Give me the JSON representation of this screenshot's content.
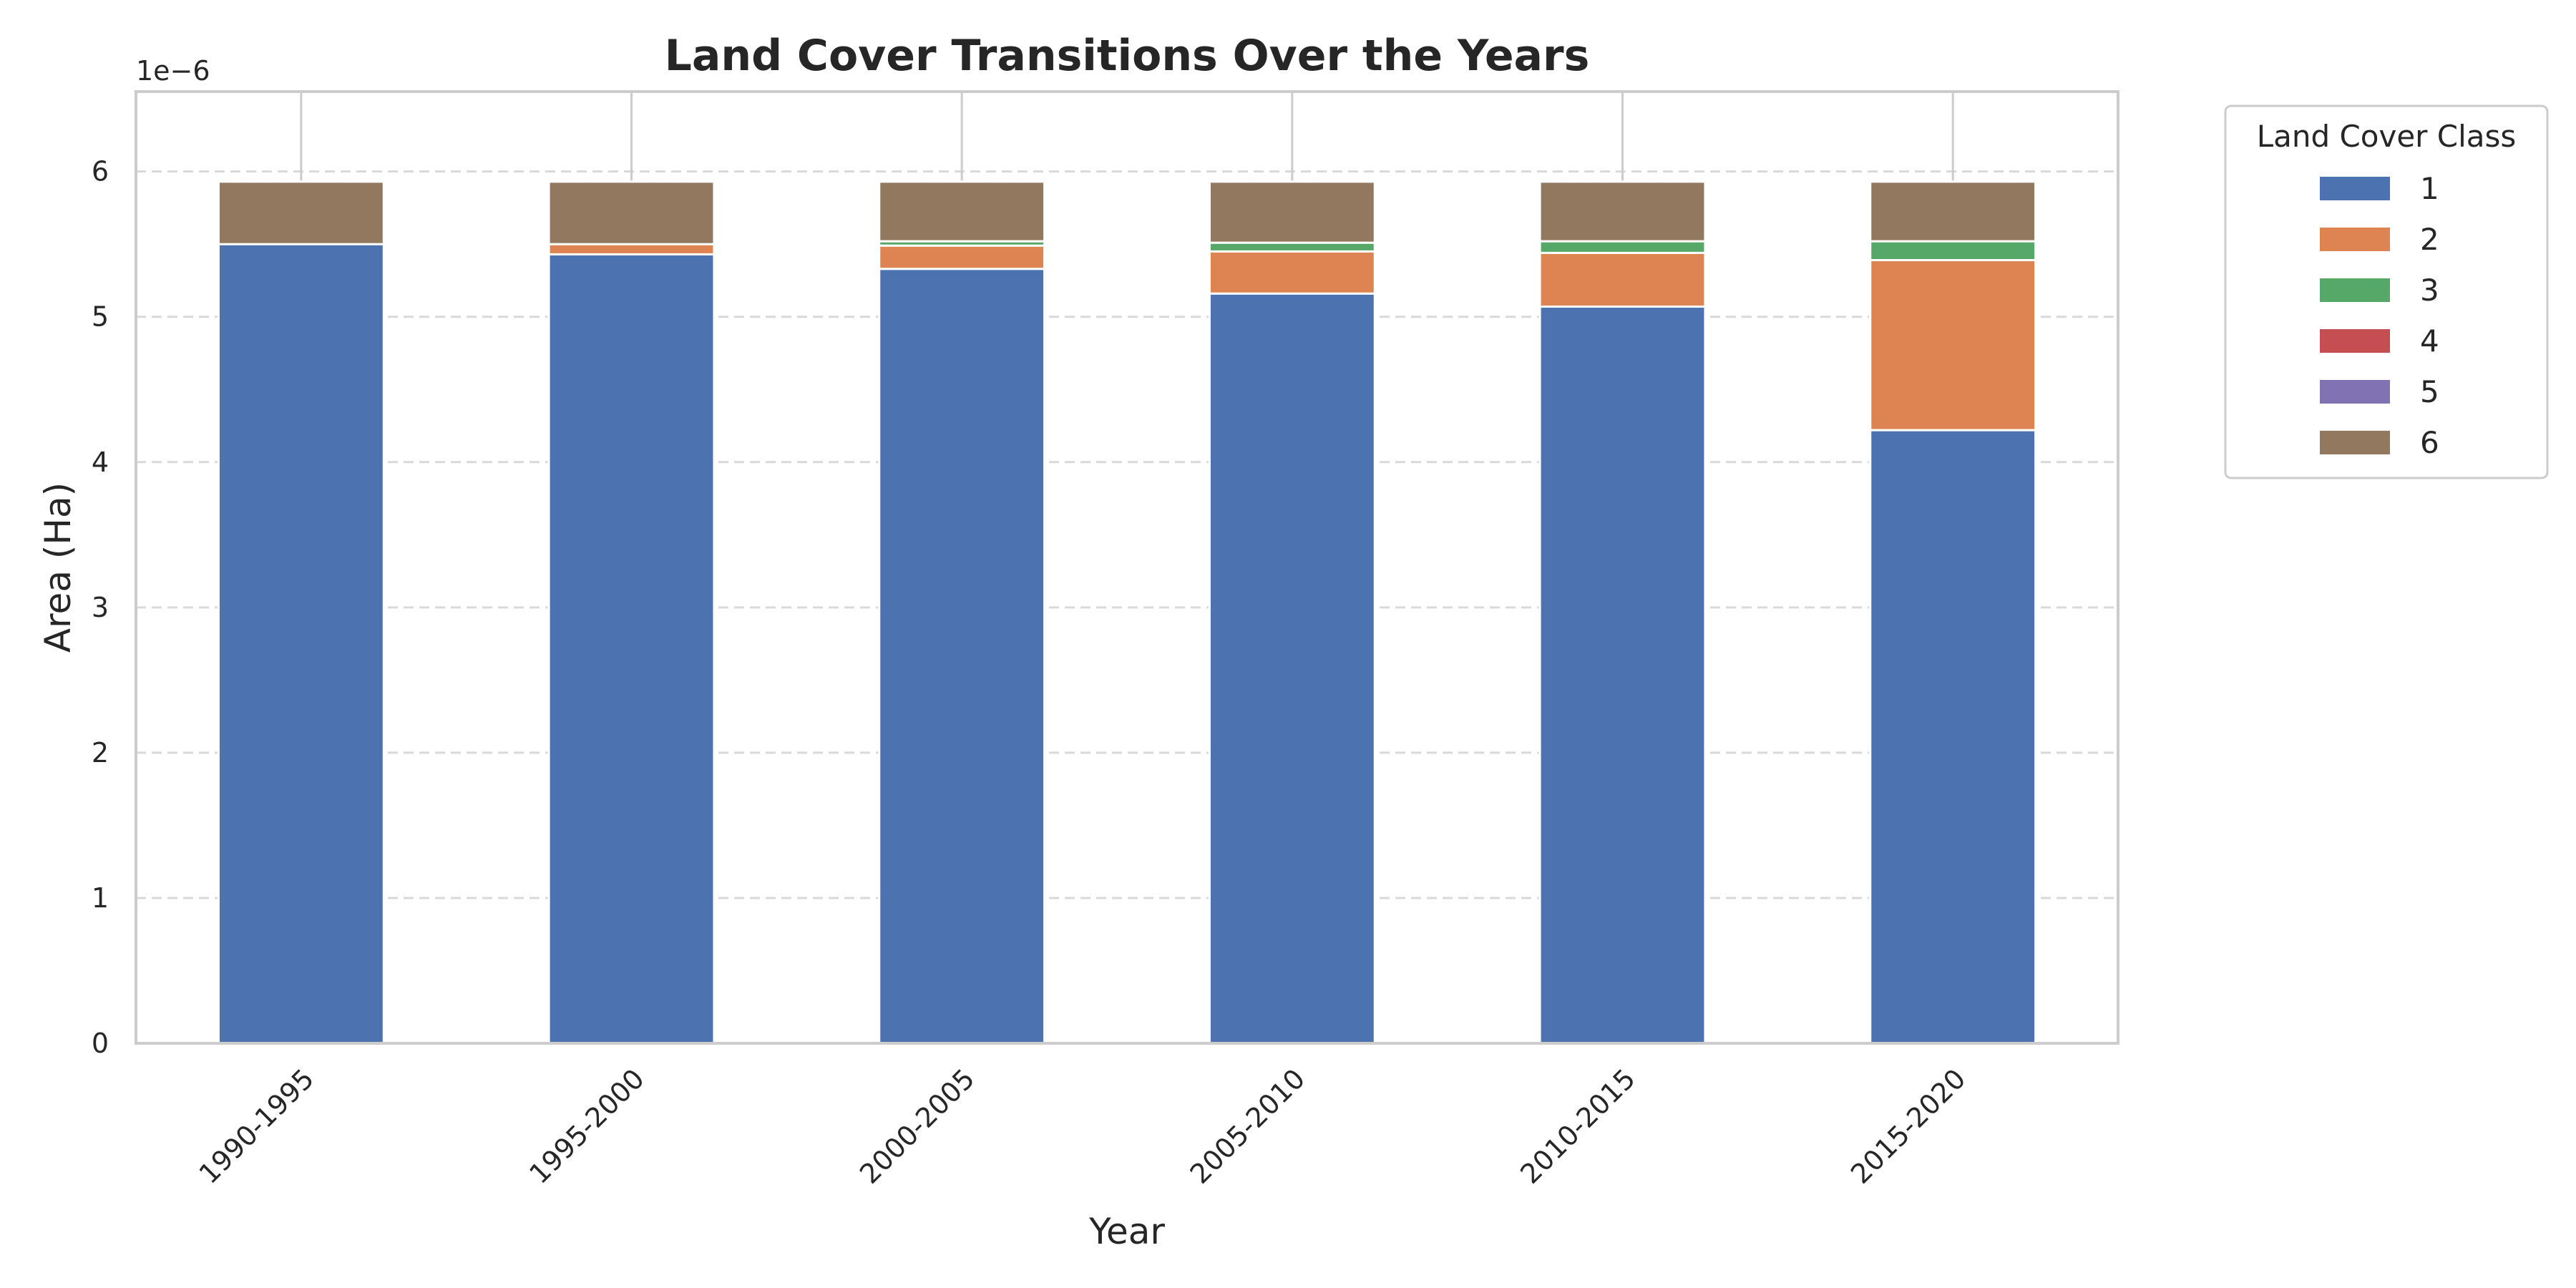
{
  "chart_data": {
    "type": "bar",
    "stacked": true,
    "title": "Land Cover Transitions Over the Years",
    "xlabel": "Year",
    "ylabel": "Area (Ha)",
    "y_offset_label": "1e−6",
    "ylim": [
      0,
      6.55
    ],
    "yticks": [
      0,
      1,
      2,
      3,
      4,
      5,
      6
    ],
    "grid": "y dashed",
    "legend_title": "Land Cover Class",
    "legend_placement": "outside upper right",
    "categories": [
      "1990-1995",
      "1995-2000",
      "2000-2005",
      "2005-2010",
      "2010-2015",
      "2015-2020"
    ],
    "series": [
      {
        "name": "1",
        "color": "#4c72b0",
        "values": [
          5.5,
          5.43,
          5.33,
          5.16,
          5.07,
          4.22
        ]
      },
      {
        "name": "2",
        "color": "#dd8452",
        "values": [
          0.0,
          0.07,
          0.16,
          0.29,
          0.37,
          1.17
        ]
      },
      {
        "name": "3",
        "color": "#55a868",
        "values": [
          0.0,
          0.0,
          0.03,
          0.06,
          0.08,
          0.13
        ]
      },
      {
        "name": "4",
        "color": "#c44e52",
        "values": [
          0.0,
          0.0,
          0.0,
          0.0,
          0.0,
          0.0
        ]
      },
      {
        "name": "5",
        "color": "#8172b3",
        "values": [
          0.0,
          0.0,
          0.0,
          0.0,
          0.0,
          0.0
        ]
      },
      {
        "name": "6",
        "color": "#937860",
        "values": [
          0.43,
          0.43,
          0.41,
          0.42,
          0.41,
          0.41
        ]
      }
    ]
  }
}
